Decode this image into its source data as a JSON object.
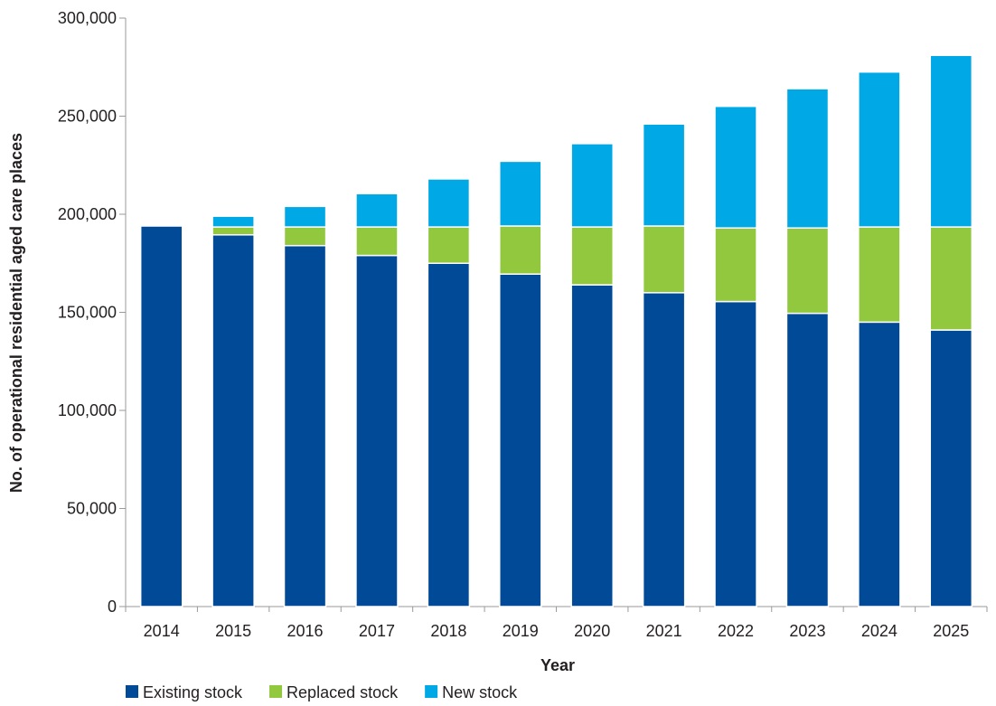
{
  "chart_data": {
    "type": "bar",
    "stacked": true,
    "title": "",
    "xlabel": "Year",
    "ylabel": "No. of operational residential aged care places",
    "ylim": [
      0,
      300000
    ],
    "yticks": [
      0,
      50000,
      100000,
      150000,
      200000,
      250000,
      300000
    ],
    "ytick_labels": [
      "0",
      "50,000",
      "100,000",
      "150,000",
      "200,000",
      "250,000",
      "300,000"
    ],
    "grid": false,
    "legend_position": "bottom-left",
    "categories": [
      "2014",
      "2015",
      "2016",
      "2017",
      "2018",
      "2019",
      "2020",
      "2021",
      "2022",
      "2023",
      "2024",
      "2025"
    ],
    "series": [
      {
        "name": "Existing stock",
        "color": "#004a97",
        "values": [
          194000,
          189500,
          184000,
          179000,
          175000,
          169500,
          164000,
          160000,
          155500,
          149500,
          145000,
          141000
        ]
      },
      {
        "name": "Replaced stock",
        "color": "#92c83e",
        "values": [
          0,
          4000,
          9500,
          14500,
          18500,
          24500,
          29500,
          34000,
          37500,
          43500,
          48500,
          52500
        ]
      },
      {
        "name": "New stock",
        "color": "#00a9e6",
        "values": [
          0,
          5500,
          10500,
          17000,
          24500,
          33000,
          42500,
          52000,
          62000,
          71000,
          79000,
          87500
        ]
      }
    ]
  }
}
